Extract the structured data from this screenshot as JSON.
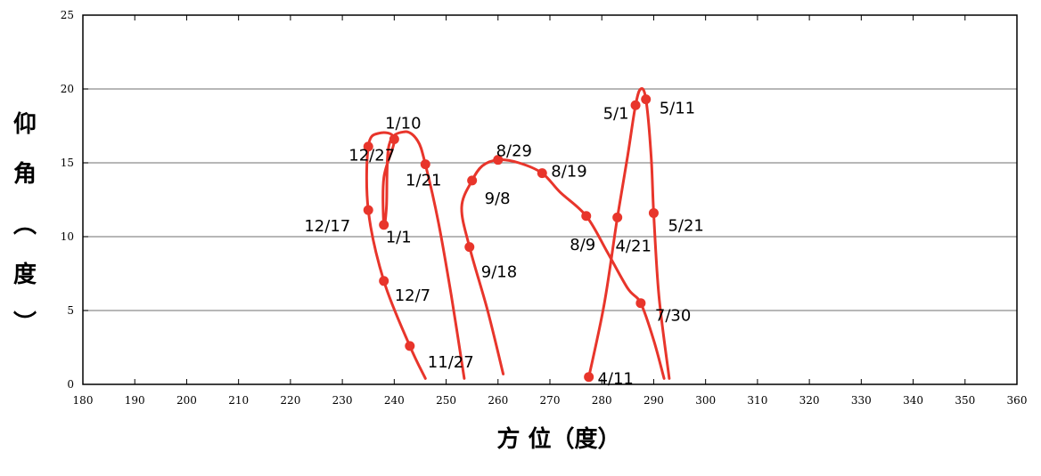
{
  "chart_data": {
    "type": "line",
    "title": "",
    "xlabel": "方 位（度）",
    "ylabel": "仰角（度）",
    "ylabel_chars": [
      "仰",
      "角",
      "︵",
      "度",
      "︶"
    ],
    "xlim": [
      180,
      360
    ],
    "ylim": [
      0,
      25
    ],
    "xticks": [
      180,
      190,
      200,
      210,
      220,
      230,
      240,
      250,
      260,
      270,
      280,
      290,
      300,
      310,
      320,
      330,
      340,
      350,
      360
    ],
    "yticks": [
      0,
      5,
      10,
      15,
      20,
      25
    ],
    "grid": "horizontal",
    "line_color": "#e8352b",
    "marker_color": "#e8352b",
    "series": [
      {
        "curve": [
          [
            246,
            0.4
          ],
          [
            243,
            2.6
          ],
          [
            238,
            7.0
          ],
          [
            235,
            11.8
          ],
          [
            235,
            16.1
          ],
          [
            237,
            17.0
          ],
          [
            240,
            16.6
          ],
          [
            238,
            14.0
          ],
          [
            238,
            10.8
          ],
          [
            238.5,
            12.0
          ],
          [
            239,
            16.2
          ],
          [
            242,
            17.1
          ],
          [
            244.5,
            16.5
          ],
          [
            246,
            14.9
          ],
          [
            248.5,
            11.0
          ],
          [
            251,
            6.0
          ],
          [
            253.5,
            0.4
          ]
        ],
        "points": [
          {
            "x": 243,
            "y": 2.6,
            "label": "11/27"
          },
          {
            "x": 238,
            "y": 7.0,
            "label": "12/7"
          },
          {
            "x": 235,
            "y": 11.8,
            "label": "12/17"
          },
          {
            "x": 235,
            "y": 16.1,
            "label": "12/27"
          },
          {
            "x": 238,
            "y": 10.8,
            "label": "1/1"
          },
          {
            "x": 240,
            "y": 16.6,
            "label": "1/10"
          },
          {
            "x": 246,
            "y": 14.9,
            "label": "1/21"
          }
        ]
      },
      {
        "curve": [
          [
            261,
            0.7
          ],
          [
            258,
            5.0
          ],
          [
            254.5,
            9.3
          ],
          [
            253,
            12.0
          ],
          [
            255,
            13.8
          ],
          [
            257,
            14.8
          ],
          [
            260,
            15.2
          ],
          [
            264,
            15.0
          ],
          [
            268.5,
            14.3
          ],
          [
            272,
            13.0
          ],
          [
            277,
            11.4
          ],
          [
            281,
            9.0
          ],
          [
            285,
            6.5
          ],
          [
            287.5,
            5.5
          ],
          [
            290,
            3.0
          ],
          [
            292,
            0.4
          ]
        ],
        "points": [
          {
            "x": 254.5,
            "y": 9.3,
            "label": "9/18"
          },
          {
            "x": 255,
            "y": 13.8,
            "label": "9/8"
          },
          {
            "x": 260,
            "y": 15.2,
            "label": "8/29"
          },
          {
            "x": 268.5,
            "y": 14.3,
            "label": "8/19"
          },
          {
            "x": 277,
            "y": 11.4,
            "label": "8/9"
          },
          {
            "x": 287.5,
            "y": 5.5,
            "label": "7/30"
          }
        ]
      },
      {
        "curve": [
          [
            277.5,
            0.5
          ],
          [
            280.5,
            5.5
          ],
          [
            283,
            11.3
          ],
          [
            285,
            15.5
          ],
          [
            286.5,
            18.9
          ],
          [
            287.5,
            20.0
          ],
          [
            288.5,
            19.3
          ],
          [
            289.5,
            15.5
          ],
          [
            290,
            11.6
          ],
          [
            291,
            6.0
          ],
          [
            293,
            0.4
          ]
        ],
        "points": [
          {
            "x": 277.5,
            "y": 0.5,
            "label": "4/11"
          },
          {
            "x": 283,
            "y": 11.3,
            "label": "4/21"
          },
          {
            "x": 286.5,
            "y": 18.9,
            "label": "5/1"
          },
          {
            "x": 288.5,
            "y": 19.3,
            "label": "5/11"
          },
          {
            "x": 290,
            "y": 11.6,
            "label": "5/21"
          }
        ]
      }
    ]
  }
}
